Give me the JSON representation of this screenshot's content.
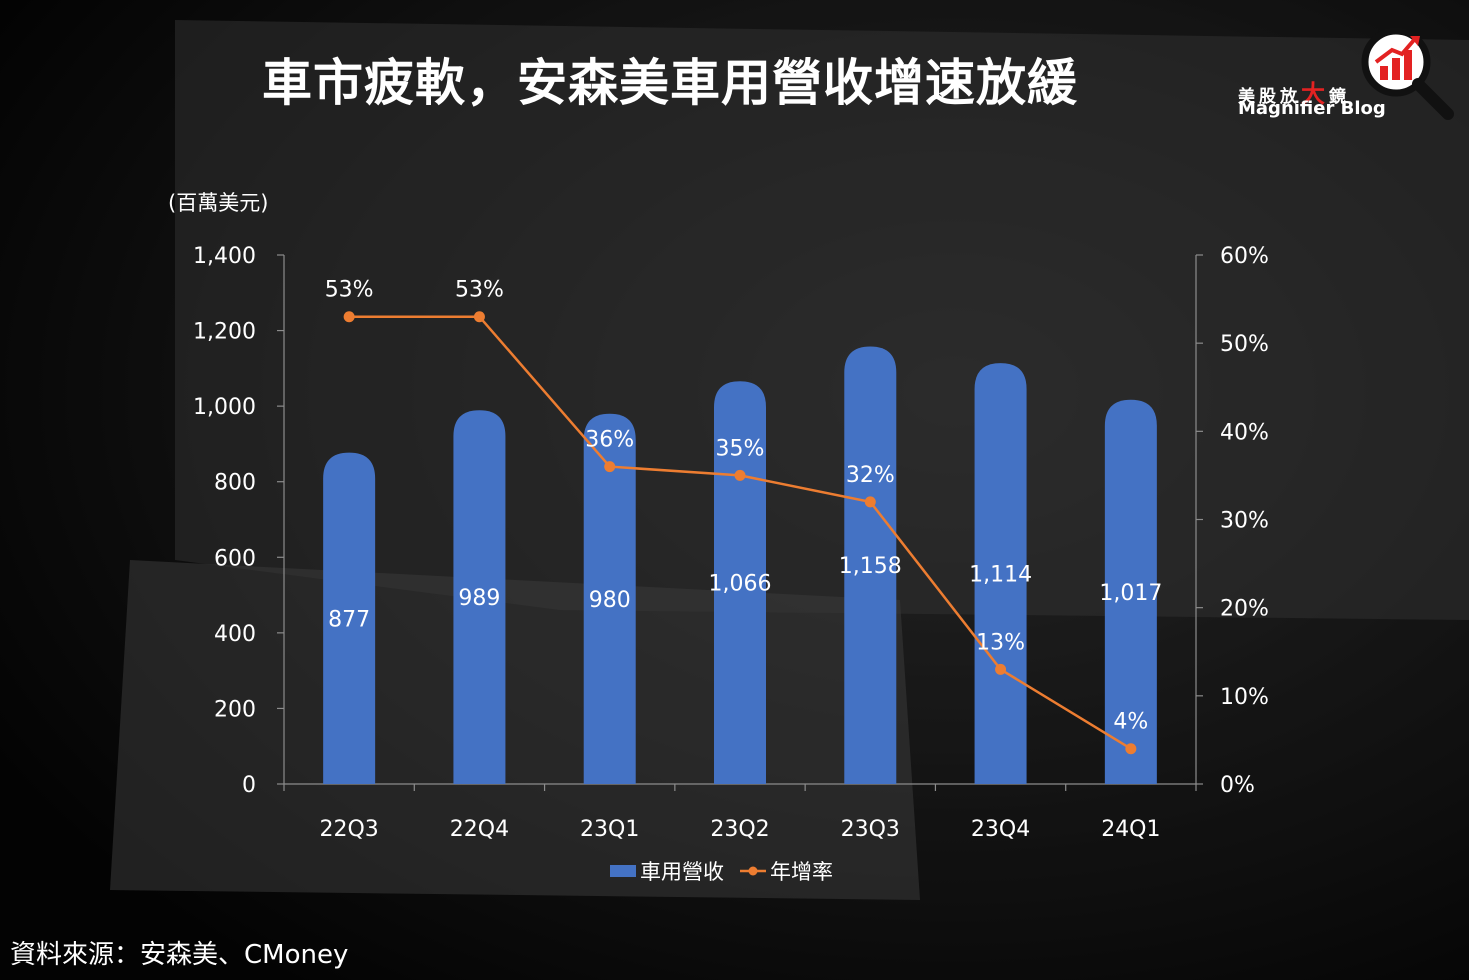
{
  "title": "車市疲軟，安森美車用營收增速放緩",
  "logo": {
    "cn_before": "美股放",
    "cn_big": "大",
    "cn_after": "鏡",
    "en": "Magnifier Blog"
  },
  "source": "資料來源：安森美、CMoney",
  "colors": {
    "bar": "#4472c4",
    "line": "#ed7d31",
    "logo_red": "#e32222"
  },
  "chart_data": {
    "type": "bar",
    "unit_label": "(百萬美元)",
    "categories": [
      "22Q3",
      "22Q4",
      "23Q1",
      "23Q2",
      "23Q3",
      "23Q4",
      "24Q1"
    ],
    "series": [
      {
        "name": "車用營收",
        "type": "bar",
        "axis": "left",
        "values": [
          877,
          989,
          980,
          1066,
          1158,
          1114,
          1017
        ],
        "labels": [
          "877",
          "989",
          "980",
          "1,066",
          "1,158",
          "1,114",
          "1,017"
        ]
      },
      {
        "name": "年增率",
        "type": "line",
        "axis": "right",
        "values": [
          53,
          53,
          36,
          35,
          32,
          13,
          4
        ],
        "labels": [
          "53%",
          "53%",
          "36%",
          "35%",
          "32%",
          "13%",
          "4%"
        ]
      }
    ],
    "y_left": {
      "min": 0,
      "max": 1400,
      "ticks": [
        0,
        200,
        400,
        600,
        800,
        1000,
        1200,
        1400
      ],
      "tick_labels": [
        "0",
        "200",
        "400",
        "600",
        "800",
        "1,000",
        "1,200",
        "1,400"
      ]
    },
    "y_right": {
      "min": 0,
      "max": 60,
      "ticks": [
        0,
        10,
        20,
        30,
        40,
        50,
        60
      ],
      "tick_labels": [
        "0%",
        "10%",
        "20%",
        "30%",
        "40%",
        "50%",
        "60%"
      ]
    },
    "grid": false,
    "legend_position": "bottom"
  }
}
